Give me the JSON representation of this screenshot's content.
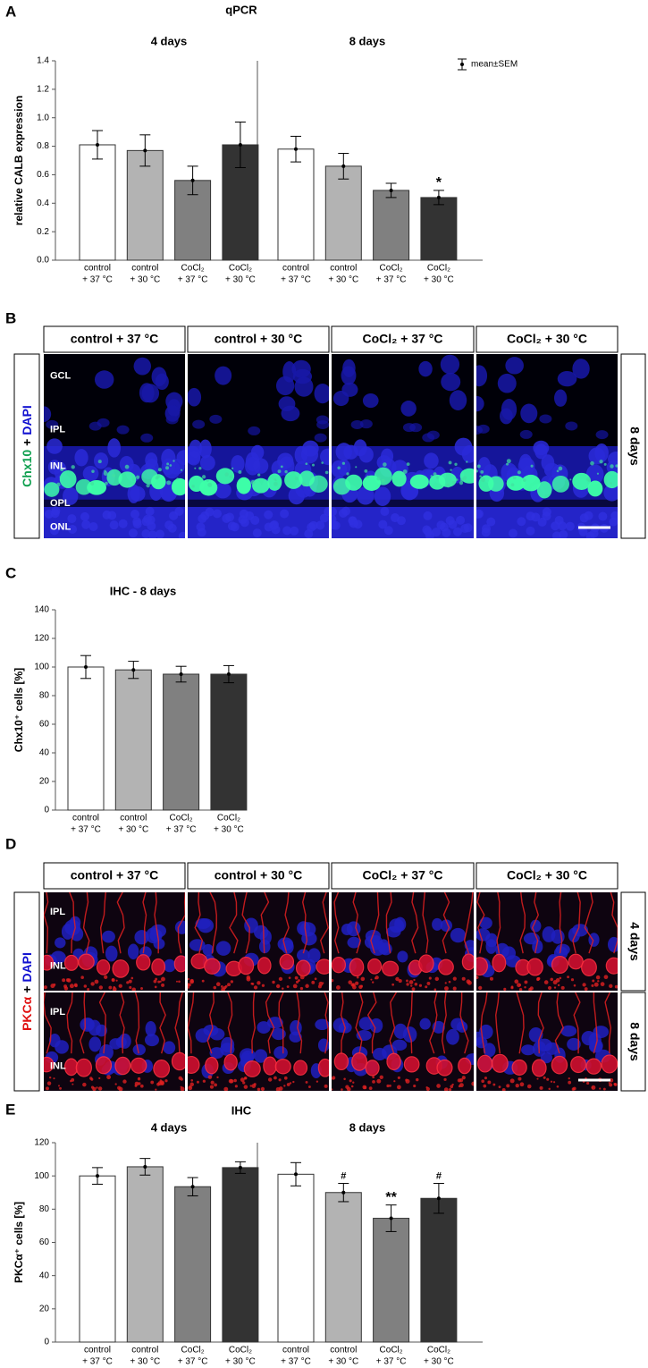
{
  "chart_data": [
    {
      "type": "bar",
      "panel": "A",
      "title": "qPCR",
      "ylabel": "relative CALB expression",
      "legend": "mean±SEM",
      "categories": [
        [
          "control",
          "+ 37 °C"
        ],
        [
          "control",
          "+ 30 °C"
        ],
        [
          "CoCl₂",
          "+ 37 °C"
        ],
        [
          "CoCl₂",
          "+ 30 °C"
        ]
      ],
      "colors": [
        "#ffffff",
        "#b3b3b3",
        "#808080",
        "#333333"
      ],
      "groups": [
        {
          "name": "4 days",
          "values": [
            0.81,
            0.77,
            0.56,
            0.81
          ],
          "errors": [
            0.1,
            0.11,
            0.1,
            0.16
          ]
        },
        {
          "name": "8 days",
          "values": [
            0.78,
            0.66,
            0.49,
            0.44
          ],
          "errors": [
            0.09,
            0.09,
            0.05,
            0.05
          ],
          "markers": [
            null,
            null,
            null,
            "*"
          ]
        }
      ],
      "ylim": [
        0,
        1.4
      ],
      "yticks": [
        {
          "value": 0,
          "label": "0.0"
        },
        0.2,
        0.4,
        0.6,
        0.8,
        {
          "value": 1,
          "label": "1.0"
        },
        1.2,
        1.4
      ]
    },
    {
      "type": "bar",
      "panel": "C",
      "title": "IHC - 8 days",
      "ylabel": "Chx10⁺ cells [%]",
      "categories": [
        [
          "control",
          "+ 37 °C"
        ],
        [
          "control",
          "+ 30 °C"
        ],
        [
          "CoCl₂",
          "+ 37 °C"
        ],
        [
          "CoCl₂",
          "+ 30 °C"
        ]
      ],
      "colors": [
        "#ffffff",
        "#b3b3b3",
        "#808080",
        "#333333"
      ],
      "groups": [
        {
          "values": [
            100,
            98,
            95,
            95
          ],
          "errors": [
            8,
            6,
            5.5,
            6
          ]
        }
      ],
      "ylim": [
        0,
        140
      ],
      "yticks": [
        0,
        20,
        40,
        60,
        80,
        100,
        120,
        140
      ]
    },
    {
      "type": "bar",
      "panel": "E",
      "title": "IHC",
      "ylabel": "PKCα⁺ cells [%]",
      "categories": [
        [
          "control",
          "+ 37 °C"
        ],
        [
          "control",
          "+ 30 °C"
        ],
        [
          "CoCl₂",
          "+ 37 °C"
        ],
        [
          "CoCl₂",
          "+ 30 °C"
        ]
      ],
      "colors": [
        "#ffffff",
        "#b3b3b3",
        "#808080",
        "#333333"
      ],
      "groups": [
        {
          "name": "4 days",
          "values": [
            100,
            105.5,
            93.5,
            105
          ],
          "errors": [
            5,
            5,
            5.5,
            3.5
          ]
        },
        {
          "name": "8 days",
          "values": [
            101,
            90,
            74.5,
            86.5
          ],
          "errors": [
            7,
            5.5,
            8,
            9
          ],
          "markers": [
            null,
            "#",
            "**",
            "#"
          ]
        }
      ],
      "ylim": [
        0,
        120
      ],
      "yticks": [
        0,
        20,
        40,
        60,
        80,
        100,
        120
      ]
    }
  ],
  "image_panels": [
    {
      "panel": "B",
      "columns": [
        "control + 37 °C",
        "control + 30 °C",
        "CoCl₂ + 37 °C",
        "CoCl₂ + 30 °C"
      ],
      "stain": [
        "Chx10",
        "+",
        "DAPI"
      ],
      "rows": [
        {
          "name": "8 days",
          "layers": [
            "GCL",
            "IPL",
            "INL",
            "OPL",
            "ONL"
          ]
        }
      ]
    },
    {
      "panel": "D",
      "columns": [
        "control + 37 °C",
        "control + 30 °C",
        "CoCl₂ + 37 °C",
        "CoCl₂ + 30 °C"
      ],
      "stain": [
        "PKCα",
        "+",
        "DAPI"
      ],
      "rows": [
        {
          "name": "4 days",
          "layers": [
            "IPL",
            "INL"
          ]
        },
        {
          "name": "8 days",
          "layers": [
            "IPL",
            "INL"
          ]
        }
      ]
    }
  ]
}
